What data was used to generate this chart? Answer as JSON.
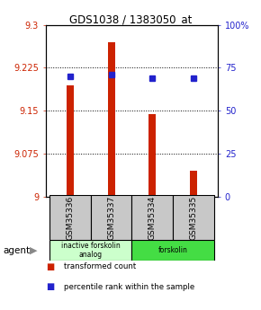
{
  "title": "GDS1038 / 1383050_at",
  "samples": [
    "GSM35336",
    "GSM35337",
    "GSM35334",
    "GSM35335"
  ],
  "bar_values": [
    9.195,
    9.27,
    9.145,
    9.045
  ],
  "percentile_values": [
    70,
    71,
    69,
    69
  ],
  "ymin": 9.0,
  "ymax": 9.3,
  "yticks": [
    9.0,
    9.075,
    9.15,
    9.225,
    9.3
  ],
  "ytick_labels": [
    "9",
    "9.075",
    "9.15",
    "9.225",
    "9.3"
  ],
  "y2ticks": [
    0,
    25,
    50,
    75,
    100
  ],
  "y2tick_labels": [
    "0",
    "25",
    "50",
    "75",
    "100%"
  ],
  "bar_color": "#cc2200",
  "dot_color": "#2222cc",
  "agent_groups": [
    {
      "label": "inactive forskolin\nanalog",
      "indices": [
        0,
        1
      ],
      "color": "#ccffcc"
    },
    {
      "label": "forskolin",
      "indices": [
        2,
        3
      ],
      "color": "#44dd44"
    }
  ],
  "sample_bg": "#c8c8c8",
  "legend_items": [
    {
      "color": "#cc2200",
      "label": "transformed count"
    },
    {
      "color": "#2222cc",
      "label": "percentile rank within the sample"
    }
  ]
}
